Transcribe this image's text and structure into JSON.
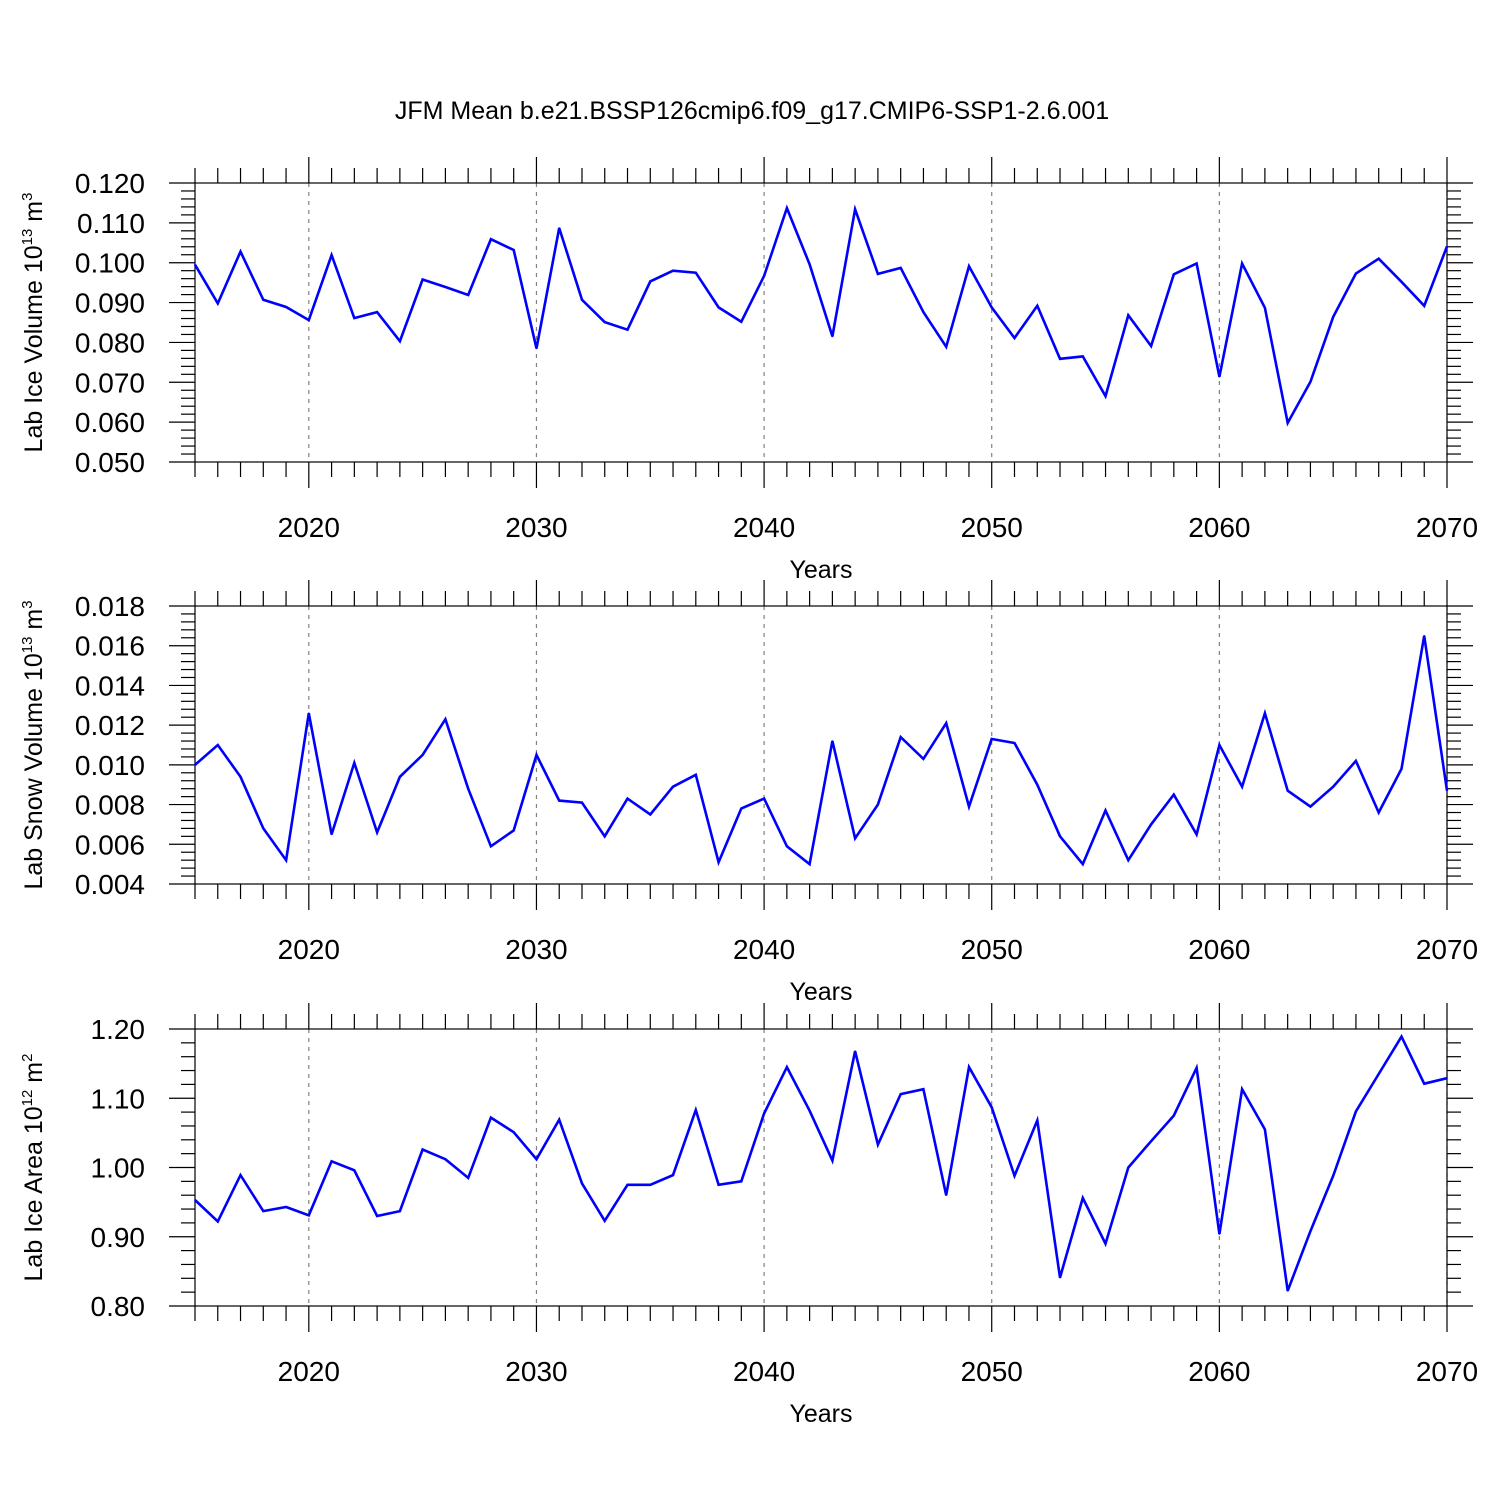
{
  "chart_data": {
    "title": "JFM Mean b.e21.BSSP126cmip6.f09_g17.CMIP6-SSP1-2.6.001",
    "line_color": "#0000ff",
    "panels": [
      {
        "type": "line",
        "xlabel": "Years",
        "ylabel_main": "Lab Ice Volume 10",
        "ylabel_exp": "13",
        "ylabel_unit": " m",
        "ylabel_unit_exp": "3",
        "xlim": [
          2015,
          2070
        ],
        "ylim": [
          0.05,
          0.12
        ],
        "yticks": [
          0.05,
          0.06,
          0.07,
          0.08,
          0.09,
          0.1,
          0.11,
          0.12
        ],
        "ytick_labels": [
          "0.050",
          "0.060",
          "0.070",
          "0.080",
          "0.090",
          "0.100",
          "0.110",
          "0.120"
        ],
        "xticks": [
          2020,
          2030,
          2040,
          2050,
          2060,
          2070
        ],
        "xtick_labels": [
          "2020",
          "2030",
          "2040",
          "2050",
          "2060",
          "2070"
        ],
        "series": [
          {
            "name": "Lab Ice Volume",
            "x": [
              2015,
              2016,
              2017,
              2018,
              2019,
              2020,
              2021,
              2022,
              2023,
              2024,
              2025,
              2026,
              2027,
              2028,
              2029,
              2030,
              2031,
              2032,
              2033,
              2034,
              2035,
              2036,
              2037,
              2038,
              2039,
              2040,
              2041,
              2042,
              2043,
              2044,
              2045,
              2046,
              2047,
              2048,
              2049,
              2050,
              2051,
              2052,
              2053,
              2054,
              2055,
              2056,
              2057,
              2058,
              2059,
              2060,
              2061,
              2062,
              2063,
              2064,
              2065,
              2066,
              2067,
              2068,
              2069,
              2070
            ],
            "values": [
              0.0995,
              0.0898,
              0.1028,
              0.0907,
              0.0889,
              0.0856,
              0.1019,
              0.0861,
              0.0876,
              0.0803,
              0.0958,
              0.0939,
              0.0919,
              0.1059,
              0.1032,
              0.0785,
              0.1087,
              0.0907,
              0.0851,
              0.0832,
              0.0953,
              0.098,
              0.0975,
              0.0888,
              0.0852,
              0.0967,
              0.1137,
              0.0996,
              0.0815,
              0.1134,
              0.0972,
              0.0987,
              0.0876,
              0.0789,
              0.0991,
              0.0888,
              0.0811,
              0.0892,
              0.0759,
              0.0765,
              0.0665,
              0.0868,
              0.0791,
              0.0971,
              0.0998,
              0.0714,
              0.0998,
              0.0887,
              0.0598,
              0.0701,
              0.0864,
              0.0973,
              0.101,
              0.0952,
              0.0892,
              0.1041
            ]
          }
        ]
      },
      {
        "type": "line",
        "xlabel": "Years",
        "ylabel_main": "Lab Snow Volume 10",
        "ylabel_exp": "13",
        "ylabel_unit": " m",
        "ylabel_unit_exp": "3",
        "xlim": [
          2015,
          2070
        ],
        "ylim": [
          0.004,
          0.018
        ],
        "yticks": [
          0.004,
          0.006,
          0.008,
          0.01,
          0.012,
          0.014,
          0.016,
          0.018
        ],
        "ytick_labels": [
          "0.004",
          "0.006",
          "0.008",
          "0.010",
          "0.012",
          "0.014",
          "0.016",
          "0.018"
        ],
        "xticks": [
          2020,
          2030,
          2040,
          2050,
          2060,
          2070
        ],
        "xtick_labels": [
          "2020",
          "2030",
          "2040",
          "2050",
          "2060",
          "2070"
        ],
        "series": [
          {
            "name": "Lab Snow Volume",
            "x": [
              2015,
              2016,
              2017,
              2018,
              2019,
              2020,
              2021,
              2022,
              2023,
              2024,
              2025,
              2026,
              2027,
              2028,
              2029,
              2030,
              2031,
              2032,
              2033,
              2034,
              2035,
              2036,
              2037,
              2038,
              2039,
              2040,
              2041,
              2042,
              2043,
              2044,
              2045,
              2046,
              2047,
              2048,
              2049,
              2050,
              2051,
              2052,
              2053,
              2054,
              2055,
              2056,
              2057,
              2058,
              2059,
              2060,
              2061,
              2062,
              2063,
              2064,
              2065,
              2066,
              2067,
              2068,
              2069,
              2070
            ],
            "values": [
              0.01,
              0.011,
              0.0094,
              0.0068,
              0.0052,
              0.0126,
              0.0065,
              0.0101,
              0.0066,
              0.0094,
              0.0105,
              0.0123,
              0.0088,
              0.0059,
              0.0067,
              0.0105,
              0.0082,
              0.0081,
              0.0064,
              0.0083,
              0.0075,
              0.0089,
              0.0095,
              0.0051,
              0.0078,
              0.0083,
              0.0059,
              0.005,
              0.0112,
              0.0063,
              0.008,
              0.0114,
              0.0103,
              0.0121,
              0.0079,
              0.0113,
              0.0111,
              0.009,
              0.0064,
              0.005,
              0.0077,
              0.0052,
              0.007,
              0.0085,
              0.0065,
              0.011,
              0.0089,
              0.0126,
              0.0087,
              0.0079,
              0.0089,
              0.0102,
              0.0076,
              0.0098,
              0.0165,
              0.0087
            ]
          }
        ]
      },
      {
        "type": "line",
        "xlabel": "Years",
        "ylabel_main": "Lab Ice Area 10",
        "ylabel_exp": "12",
        "ylabel_unit": " m",
        "ylabel_unit_exp": "2",
        "xlim": [
          2015,
          2070
        ],
        "ylim": [
          0.8,
          1.2
        ],
        "yticks": [
          0.8,
          0.9,
          1.0,
          1.1,
          1.2
        ],
        "ytick_labels": [
          "0.80",
          "0.90",
          "1.00",
          "1.10",
          "1.20"
        ],
        "xticks": [
          2020,
          2030,
          2040,
          2050,
          2060,
          2070
        ],
        "xtick_labels": [
          "2020",
          "2030",
          "2040",
          "2050",
          "2060",
          "2070"
        ],
        "series": [
          {
            "name": "Lab Ice Area",
            "x": [
              2015,
              2016,
              2017,
              2018,
              2019,
              2020,
              2021,
              2022,
              2023,
              2024,
              2025,
              2026,
              2027,
              2028,
              2029,
              2030,
              2031,
              2032,
              2033,
              2034,
              2035,
              2036,
              2037,
              2038,
              2039,
              2040,
              2041,
              2042,
              2043,
              2044,
              2045,
              2046,
              2047,
              2048,
              2049,
              2050,
              2051,
              2052,
              2053,
              2054,
              2055,
              2056,
              2057,
              2058,
              2059,
              2060,
              2061,
              2062,
              2063,
              2064,
              2065,
              2066,
              2067,
              2068,
              2069,
              2070
            ],
            "values": [
              0.953,
              0.922,
              0.989,
              0.937,
              0.943,
              0.931,
              1.009,
              0.996,
              0.93,
              0.937,
              1.026,
              1.012,
              0.985,
              1.072,
              1.051,
              1.012,
              1.069,
              0.977,
              0.923,
              0.975,
              0.975,
              0.989,
              1.083,
              0.975,
              0.98,
              1.078,
              1.145,
              1.082,
              1.01,
              1.168,
              1.033,
              1.106,
              1.113,
              0.96,
              1.145,
              1.087,
              0.988,
              1.068,
              0.841,
              0.956,
              0.89,
              1.0,
              1.038,
              1.075,
              1.144,
              0.904,
              1.113,
              1.055,
              0.822,
              0.908,
              0.988,
              1.081,
              1.135,
              1.189,
              1.121,
              1.129
            ]
          }
        ]
      }
    ]
  }
}
